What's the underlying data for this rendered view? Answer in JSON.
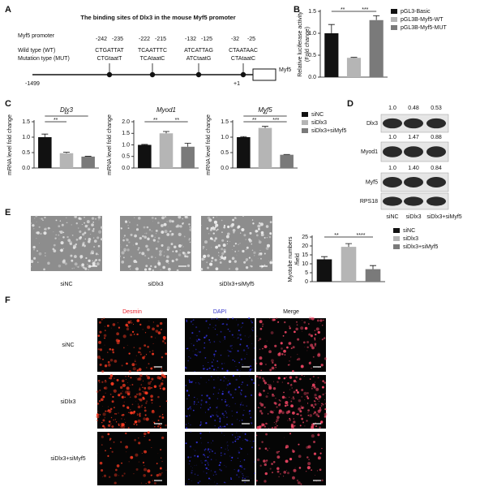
{
  "panel_labels": [
    "A",
    "B",
    "C",
    "D",
    "E",
    "F"
  ],
  "promoter": {
    "title": "The binding sites of Dlx3 in the mouse Myf5 promoter",
    "label": "Myf5 promoter",
    "wt_label": "Wild type (WT)",
    "mut_label": "Mutation type (MUT)",
    "start": "-1499",
    "tss": "+1",
    "gene": "Myf5",
    "sites": [
      {
        "from": "-242",
        "to": "-235",
        "wt": "CTGATTAT",
        "mut": "CTGtaatT"
      },
      {
        "from": "-222",
        "to": "-215",
        "wt": "TCAATTTC",
        "mut": "TCAtaatC"
      },
      {
        "from": "-132",
        "to": "-125",
        "wt": "ATCATTAG",
        "mut": "ATCtaatG"
      },
      {
        "from": "-32",
        "to": "-25",
        "wt": "CTAATAAC",
        "mut": "CTAtaatC"
      }
    ]
  },
  "chart_data": [
    {
      "type": "bar",
      "ylabel": [
        "Relative luciferase activity",
        "(Fold change)"
      ],
      "ylim": [
        0,
        1.5
      ],
      "yticks": [
        {
          "value": 0,
          "label": "0.0"
        },
        0.5,
        {
          "value": 1,
          "label": "1.0"
        },
        1.5
      ],
      "series": [
        {
          "name": "pGL3-Basic",
          "color": "#111111",
          "values": [
            1.0
          ],
          "errors": [
            0.2
          ]
        },
        {
          "name": "pGL3B-Myf5-WT",
          "color": "#b5b5b5",
          "values": [
            0.44
          ],
          "errors": [
            0.01
          ]
        },
        {
          "name": "pGL3B-Myf5-MUT",
          "color": "#7a7a7a",
          "values": [
            1.3
          ],
          "errors": [
            0.1
          ]
        }
      ],
      "annotations": [
        "**",
        "***"
      ]
    },
    {
      "type": "bar",
      "title": "Dlx3",
      "ylabel": [
        "mRNA level fold change"
      ],
      "ylim": [
        0,
        1.5
      ],
      "yticks": [
        {
          "value": 0,
          "label": "0.0"
        },
        0.5,
        {
          "value": 1,
          "label": "1.0"
        },
        1.5
      ],
      "series": [
        {
          "color": "#111111",
          "values": [
            1.0
          ],
          "errors": [
            0.1
          ]
        },
        {
          "color": "#b5b5b5",
          "values": [
            0.48
          ],
          "errors": [
            0.03
          ]
        },
        {
          "color": "#7a7a7a",
          "values": [
            0.37
          ],
          "errors": [
            0.01
          ]
        }
      ],
      "annotations": [
        "**",
        "**"
      ]
    },
    {
      "type": "bar",
      "title": "Myod1",
      "ylabel": [
        "mRNA level fold change"
      ],
      "ylim": [
        0,
        2
      ],
      "yticks": [
        {
          "value": 0,
          "label": "0.0"
        },
        0.5,
        {
          "value": 1,
          "label": "1.0"
        },
        1.5,
        {
          "value": 2,
          "label": "2.0"
        }
      ],
      "series": [
        {
          "color": "#111111",
          "values": [
            1.0
          ],
          "errors": [
            0.02
          ]
        },
        {
          "color": "#b5b5b5",
          "values": [
            1.5
          ],
          "errors": [
            0.08
          ]
        },
        {
          "color": "#7a7a7a",
          "values": [
            0.92
          ],
          "errors": [
            0.15
          ]
        }
      ],
      "annotations": [
        "**",
        "**"
      ]
    },
    {
      "type": "bar",
      "title": "Myf5",
      "ylabel": [
        "mRNA level fold change"
      ],
      "ylim": [
        0,
        1.5
      ],
      "yticks": [
        {
          "value": 0,
          "label": "0.0"
        },
        0.5,
        {
          "value": 1,
          "label": "1.0"
        },
        1.5
      ],
      "series": [
        {
          "name": "siNC",
          "color": "#111111",
          "values": [
            1.0
          ],
          "errors": [
            0.02
          ]
        },
        {
          "name": "siDlx3",
          "color": "#b5b5b5",
          "values": [
            1.3
          ],
          "errors": [
            0.05
          ]
        },
        {
          "name": "siDlx3+siMyf5",
          "color": "#7a7a7a",
          "values": [
            0.43
          ],
          "errors": [
            0.01
          ]
        }
      ],
      "annotations": [
        "**",
        "**",
        "***"
      ]
    },
    {
      "type": "bar",
      "ylabel": [
        "Myotube numbers",
        "/field"
      ],
      "ylim": [
        0,
        25
      ],
      "yticks": [
        0,
        5,
        10,
        15,
        20,
        25
      ],
      "series": [
        {
          "name": "siNC",
          "color": "#111111",
          "values": [
            12.5
          ],
          "errors": [
            1.5
          ]
        },
        {
          "name": "siDlx3",
          "color": "#b5b5b5",
          "values": [
            19.5
          ],
          "errors": [
            1.8
          ]
        },
        {
          "name": "siDlx3+siMyf5",
          "color": "#7a7a7a",
          "values": [
            7.0
          ],
          "errors": [
            2.0
          ]
        }
      ],
      "annotations": [
        "**",
        "****"
      ]
    }
  ],
  "western": {
    "rows": [
      {
        "label": "Dlx3",
        "ratios": [
          "1.0",
          "0.48",
          "0.53"
        ]
      },
      {
        "label": "Myod1",
        "ratios": [
          "1.0",
          "1.47",
          "0.88"
        ]
      },
      {
        "label": "Myf5",
        "ratios": [
          "1.0",
          "1.40",
          "0.84"
        ]
      },
      {
        "label": "RPS18"
      }
    ],
    "columns": [
      "siNC",
      "siDlx3",
      "siDlx3+siMyf5"
    ]
  },
  "microscopy": {
    "labels": [
      "siNC",
      "siDlx3",
      "siDlx3+siMyf5"
    ]
  },
  "fluorescence": {
    "columns": [
      "Desmin",
      "DAPI",
      "Merge"
    ],
    "rows": [
      "siNC",
      "siDlx3",
      "siDlx3+siMyf5"
    ]
  }
}
